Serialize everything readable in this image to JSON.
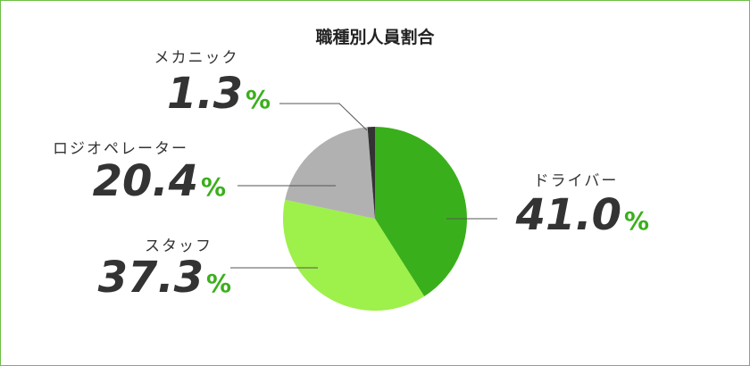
{
  "chart_data": {
    "type": "pie",
    "title": "職種別人員割合",
    "categories": [
      "ドライバー",
      "スタッフ",
      "ロジオペレーター",
      "メカニック"
    ],
    "values": [
      41.0,
      37.3,
      20.4,
      1.3
    ],
    "value_labels": [
      "41.0",
      "37.3",
      "20.4",
      "1.3"
    ],
    "unit": "%",
    "colors": [
      "#3aaf1c",
      "#9ef04a",
      "#b1b1b1",
      "#333333"
    ]
  }
}
